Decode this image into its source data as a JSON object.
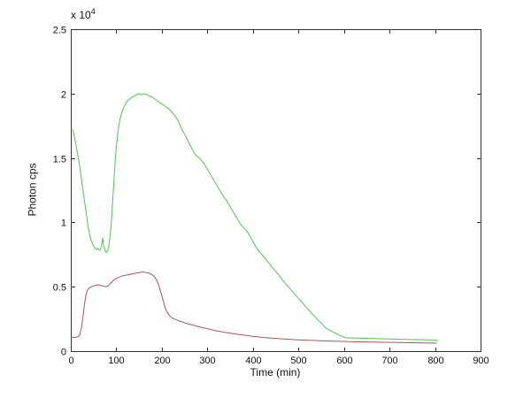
{
  "figure": {
    "background": "#ffffff",
    "axis_color": "#333333",
    "tick_label_color": "#111111"
  },
  "chart_data": {
    "type": "line",
    "title": "",
    "xlabel": "Time (min)",
    "ylabel": "Photon cps",
    "y_multiplier_label": "x 10",
    "y_multiplier_exponent": "4",
    "y_unit_note": "y values are in units of 10^4 counts per second",
    "xlim": [
      0,
      900
    ],
    "ylim": [
      0,
      2.5
    ],
    "xticks": [
      0,
      100,
      200,
      300,
      400,
      500,
      600,
      700,
      800,
      900
    ],
    "xtick_labels": [
      "0",
      "100",
      "200",
      "300",
      "400",
      "500",
      "600",
      "700",
      "800",
      "900"
    ],
    "yticks": [
      0,
      0.5,
      1,
      1.5,
      2,
      2.5
    ],
    "ytick_labels": [
      "0",
      "0.5",
      "1",
      "1.5",
      "2",
      "2.5"
    ],
    "grid": false,
    "legend": "none",
    "box": true,
    "series": [
      {
        "name": "red-trace",
        "color": "#aa5454",
        "points": [
          [
            0,
            0.108
          ],
          [
            6,
            0.107
          ],
          [
            12,
            0.108
          ],
          [
            16,
            0.112
          ],
          [
            20,
            0.13
          ],
          [
            24,
            0.19
          ],
          [
            27,
            0.27
          ],
          [
            30,
            0.36
          ],
          [
            33,
            0.43
          ],
          [
            36,
            0.47
          ],
          [
            40,
            0.49
          ],
          [
            45,
            0.5
          ],
          [
            50,
            0.507
          ],
          [
            55,
            0.512
          ],
          [
            60,
            0.515
          ],
          [
            66,
            0.51
          ],
          [
            72,
            0.505
          ],
          [
            78,
            0.5
          ],
          [
            83,
            0.51
          ],
          [
            88,
            0.53
          ],
          [
            94,
            0.55
          ],
          [
            100,
            0.565
          ],
          [
            107,
            0.575
          ],
          [
            114,
            0.585
          ],
          [
            121,
            0.59
          ],
          [
            128,
            0.595
          ],
          [
            135,
            0.6
          ],
          [
            142,
            0.605
          ],
          [
            150,
            0.61
          ],
          [
            157,
            0.615
          ],
          [
            163,
            0.612
          ],
          [
            170,
            0.607
          ],
          [
            176,
            0.6
          ],
          [
            182,
            0.585
          ],
          [
            187,
            0.56
          ],
          [
            192,
            0.525
          ],
          [
            196,
            0.48
          ],
          [
            200,
            0.43
          ],
          [
            204,
            0.38
          ],
          [
            208,
            0.33
          ],
          [
            212,
            0.3
          ],
          [
            216,
            0.28
          ],
          [
            221,
            0.262
          ],
          [
            227,
            0.25
          ],
          [
            234,
            0.24
          ],
          [
            242,
            0.23
          ],
          [
            252,
            0.218
          ],
          [
            263,
            0.207
          ],
          [
            275,
            0.196
          ],
          [
            290,
            0.182
          ],
          [
            305,
            0.17
          ],
          [
            320,
            0.158
          ],
          [
            340,
            0.145
          ],
          [
            360,
            0.134
          ],
          [
            380,
            0.124
          ],
          [
            400,
            0.115
          ],
          [
            425,
            0.106
          ],
          [
            450,
            0.099
          ],
          [
            475,
            0.093
          ],
          [
            500,
            0.088
          ],
          [
            530,
            0.083
          ],
          [
            560,
            0.079
          ],
          [
            590,
            0.076
          ],
          [
            620,
            0.073
          ],
          [
            660,
            0.07
          ],
          [
            700,
            0.068
          ],
          [
            740,
            0.066
          ],
          [
            775,
            0.064
          ],
          [
            803,
            0.062
          ]
        ]
      },
      {
        "name": "green-trace",
        "color": "#4ec64e",
        "points": [
          [
            4,
            1.72
          ],
          [
            7,
            1.68
          ],
          [
            10,
            1.63
          ],
          [
            14,
            1.55
          ],
          [
            18,
            1.47
          ],
          [
            23,
            1.35
          ],
          [
            28,
            1.22
          ],
          [
            33,
            1.09
          ],
          [
            38,
            0.97
          ],
          [
            43,
            0.88
          ],
          [
            48,
            0.83
          ],
          [
            52,
            0.805
          ],
          [
            56,
            0.79
          ],
          [
            59,
            0.8
          ],
          [
            62,
            0.785
          ],
          [
            65,
            0.79
          ],
          [
            68,
            0.83
          ],
          [
            70,
            0.88
          ],
          [
            72,
            0.82
          ],
          [
            75,
            0.78
          ],
          [
            78,
            0.765
          ],
          [
            81,
            0.78
          ],
          [
            84,
            0.83
          ],
          [
            87,
            0.92
          ],
          [
            90,
            1.05
          ],
          [
            93,
            1.22
          ],
          [
            96,
            1.4
          ],
          [
            99,
            1.55
          ],
          [
            102,
            1.66
          ],
          [
            105,
            1.74
          ],
          [
            108,
            1.8
          ],
          [
            112,
            1.855
          ],
          [
            116,
            1.89
          ],
          [
            120,
            1.92
          ],
          [
            125,
            1.945
          ],
          [
            130,
            1.96
          ],
          [
            135,
            1.975
          ],
          [
            140,
            1.98
          ],
          [
            145,
            1.995
          ],
          [
            150,
            2.0
          ],
          [
            155,
            1.99
          ],
          [
            160,
            2.0
          ],
          [
            165,
            1.995
          ],
          [
            170,
            1.985
          ],
          [
            175,
            1.98
          ],
          [
            180,
            1.97
          ],
          [
            186,
            1.955
          ],
          [
            193,
            1.935
          ],
          [
            200,
            1.92
          ],
          [
            208,
            1.9
          ],
          [
            216,
            1.88
          ],
          [
            225,
            1.845
          ],
          [
            234,
            1.8
          ],
          [
            243,
            1.73
          ],
          [
            252,
            1.67
          ],
          [
            262,
            1.6
          ],
          [
            272,
            1.53
          ],
          [
            282,
            1.5
          ],
          [
            292,
            1.46
          ],
          [
            302,
            1.4
          ],
          [
            312,
            1.34
          ],
          [
            322,
            1.28
          ],
          [
            332,
            1.22
          ],
          [
            342,
            1.17
          ],
          [
            352,
            1.11
          ],
          [
            362,
            1.05
          ],
          [
            372,
            0.99
          ],
          [
            382,
            0.95
          ],
          [
            389,
            0.92
          ],
          [
            400,
            0.85
          ],
          [
            410,
            0.79
          ],
          [
            425,
            0.73
          ],
          [
            440,
            0.66
          ],
          [
            455,
            0.6
          ],
          [
            470,
            0.53
          ],
          [
            485,
            0.47
          ],
          [
            500,
            0.41
          ],
          [
            515,
            0.35
          ],
          [
            530,
            0.29
          ],
          [
            545,
            0.235
          ],
          [
            560,
            0.18
          ],
          [
            575,
            0.15
          ],
          [
            590,
            0.125
          ],
          [
            602,
            0.105
          ],
          [
            615,
            0.103
          ],
          [
            640,
            0.1
          ],
          [
            670,
            0.097
          ],
          [
            700,
            0.095
          ],
          [
            730,
            0.092
          ],
          [
            760,
            0.089
          ],
          [
            790,
            0.087
          ],
          [
            803,
            0.086
          ],
          [
            806,
            0.077
          ]
        ]
      }
    ]
  }
}
